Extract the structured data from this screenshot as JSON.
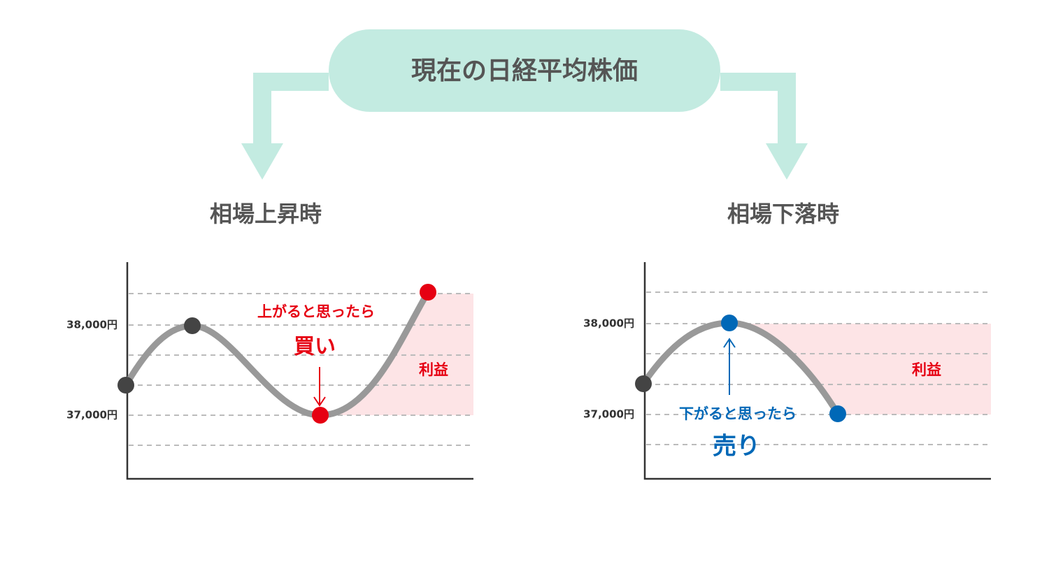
{
  "title": "現在の日経平均株価",
  "panels": [
    {
      "heading": "相場上昇時",
      "y_labels": [
        "38,000円",
        "37,000円"
      ],
      "note": "上がると思ったら",
      "action": "買い",
      "profit": "利益"
    },
    {
      "heading": "相場下落時",
      "y_labels": [
        "38,000円",
        "37,000円"
      ],
      "note": "下がると思ったら",
      "action": "売り",
      "profit": "利益"
    }
  ]
}
